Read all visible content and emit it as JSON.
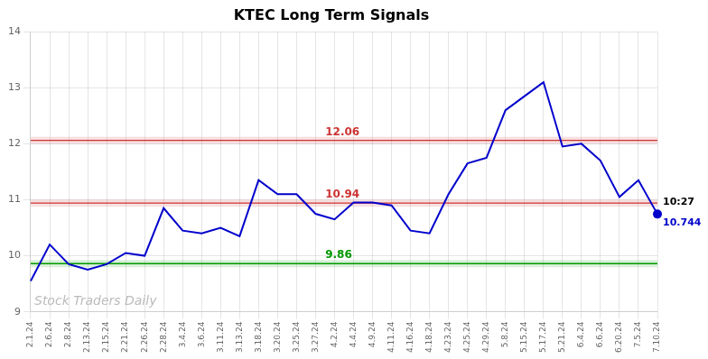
{
  "chart_data": {
    "type": "line",
    "title": "KTEC Long Term Signals",
    "categories": [
      "2.1.24",
      "2.6.24",
      "2.8.24",
      "2.13.24",
      "2.15.24",
      "2.21.24",
      "2.26.24",
      "2.28.24",
      "3.4.24",
      "3.6.24",
      "3.11.24",
      "3.13.24",
      "3.18.24",
      "3.20.24",
      "3.25.24",
      "3.27.24",
      "4.2.24",
      "4.4.24",
      "4.9.24",
      "4.11.24",
      "4.16.24",
      "4.18.24",
      "4.23.24",
      "4.25.24",
      "4.29.24",
      "5.8.24",
      "5.15.24",
      "5.17.24",
      "5.21.24",
      "6.4.24",
      "6.6.24",
      "6.20.24",
      "7.5.24",
      "7.10.24"
    ],
    "series": [
      {
        "color": "#0000cc",
        "values": [
          9.55,
          10.2,
          9.85,
          9.75,
          9.85,
          10.05,
          10.0,
          10.85,
          10.45,
          10.4,
          10.5,
          10.35,
          11.35,
          11.1,
          11.1,
          10.75,
          10.65,
          10.95,
          10.95,
          10.9,
          10.45,
          10.4,
          11.1,
          11.65,
          11.75,
          12.6,
          12.85,
          13.1,
          11.95,
          12.0,
          11.7,
          11.05,
          11.35,
          10.744
        ]
      }
    ],
    "hlines": [
      {
        "value": 12.06,
        "label": "12.06",
        "color": "#cc3333"
      },
      {
        "value": 10.94,
        "label": "10.94",
        "color": "#cc3333"
      },
      {
        "value": 9.86,
        "label": "9.86",
        "color": "#009900"
      }
    ],
    "annotations": [
      {
        "text": "10:27"
      },
      {
        "text": "10.744",
        "value": 10.744,
        "color": "#0000cc"
      },
      {
        "text": "Stock Traders Daily",
        "color": "#bbbbbb"
      }
    ],
    "ylim": [
      9,
      14
    ],
    "yticks": [
      9,
      10,
      11,
      12,
      13,
      14
    ],
    "grid": true
  }
}
